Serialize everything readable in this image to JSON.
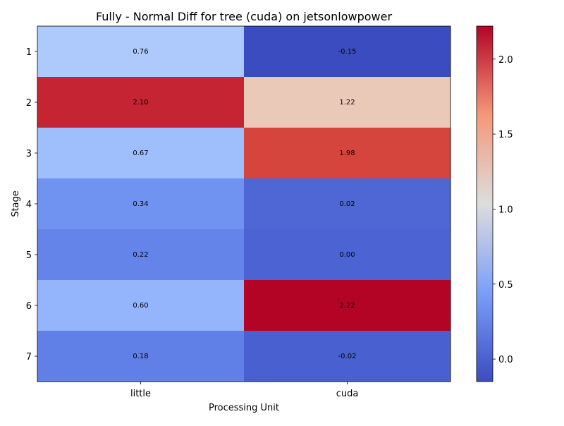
{
  "chart_data": {
    "type": "heatmap",
    "title": "Fully - Normal Diff for tree (cuda) on jetsonlowpower",
    "xlabel": "Processing Unit",
    "ylabel": "Stage",
    "x_categories": [
      "little",
      "cuda"
    ],
    "y_categories": [
      "1",
      "2",
      "3",
      "4",
      "5",
      "6",
      "7"
    ],
    "values": [
      [
        0.76,
        -0.15
      ],
      [
        2.1,
        1.22
      ],
      [
        0.67,
        1.98
      ],
      [
        0.34,
        0.02
      ],
      [
        0.22,
        0.0
      ],
      [
        0.6,
        2.22
      ],
      [
        0.18,
        -0.02
      ]
    ],
    "cell_labels": [
      [
        "0.76",
        "-0.15"
      ],
      [
        "2.10",
        "1.22"
      ],
      [
        "0.67",
        "1.98"
      ],
      [
        "0.34",
        "0.02"
      ],
      [
        "0.22",
        "0.00"
      ],
      [
        "0.60",
        "2.22"
      ],
      [
        "0.18",
        "-0.02"
      ]
    ],
    "colorbar": {
      "colormap": "coolwarm",
      "vmin": -0.15,
      "vmax": 2.22,
      "ticks": [
        0.0,
        0.5,
        1.0,
        1.5,
        2.0
      ],
      "tick_labels": [
        "0.0",
        "0.5",
        "1.0",
        "1.5",
        "2.0"
      ]
    },
    "grid": false
  }
}
